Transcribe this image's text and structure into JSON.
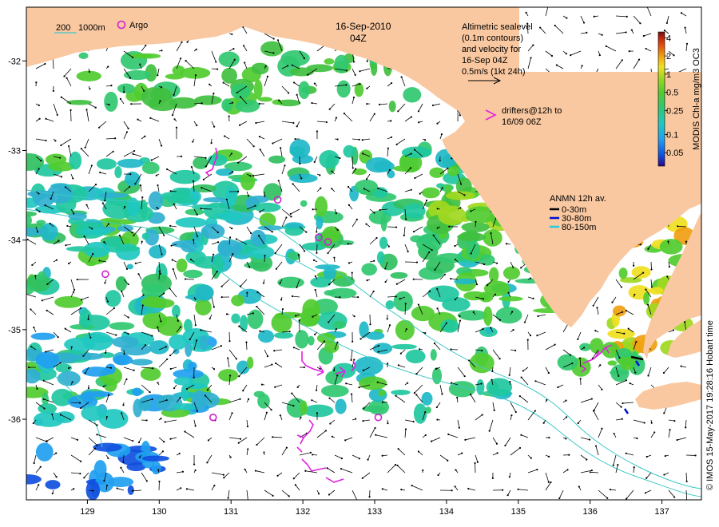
{
  "header": {
    "date": "16-Sep-2010",
    "hour": "04Z"
  },
  "depth_legend": {
    "label_200": "200",
    "label_1000": "1000m",
    "argo_label": "Argo"
  },
  "altimetry_note": {
    "lines": [
      "Altimetric sealevel",
      "(0.1m contours)",
      "and velocity for",
      "16-Sep 04Z"
    ],
    "scale_label": "0.5m/s (1kt 24h)"
  },
  "drifter_note": {
    "lines": [
      "drifters@12h to",
      "16/09 06Z"
    ]
  },
  "anmn_legend": {
    "title": "ANMN 12h av.",
    "items": [
      {
        "label": "0-30m",
        "color": "#000000"
      },
      {
        "label": "30-80m",
        "color": "#0010d0"
      },
      {
        "label": "80-150m",
        "color": "#28c8e0"
      }
    ]
  },
  "colorbar": {
    "title": "MODIS Chl-a mg/m3 OC3",
    "ticks": [
      "4",
      "2",
      "1",
      "0.5",
      "0.25",
      "0.1",
      "0.05"
    ],
    "tick_values": [
      4,
      2,
      1,
      0.5,
      0.25,
      0.1,
      0.05
    ],
    "range": [
      0.03,
      5
    ],
    "scale": "log",
    "colors": [
      "#2a0880",
      "#1050e0",
      "#20a0f0",
      "#20c8c0",
      "#30c870",
      "#50cc30",
      "#a0d820",
      "#f0e020",
      "#f0a010",
      "#e05010",
      "#b82010",
      "#6a1010"
    ]
  },
  "axes": {
    "lon_ticks": [
      "129",
      "130",
      "131",
      "132",
      "133",
      "134",
      "135",
      "136",
      "137"
    ],
    "lat_ticks": [
      "-32",
      "-33",
      "-34",
      "-35",
      "-36"
    ],
    "lon_range": [
      128.15,
      137.55
    ],
    "lat_range": [
      -36.9,
      -31.4
    ]
  },
  "credit": "© IMOS 15-May-2017 19:28:16 Hobart time",
  "colors": {
    "land": "#f9c8a0",
    "argo": "#d020d0",
    "drifter": "#e020e0",
    "isobath": "#40c8c8"
  },
  "argo_floats": [
    {
      "lon": 129.25,
      "lat": -34.38
    },
    {
      "lon": 131.65,
      "lat": -33.55
    },
    {
      "lon": 132.22,
      "lat": -33.97
    },
    {
      "lon": 132.35,
      "lat": -34.02
    },
    {
      "lon": 130.75,
      "lat": -35.98
    },
    {
      "lon": 133.05,
      "lat": -35.98
    }
  ]
}
